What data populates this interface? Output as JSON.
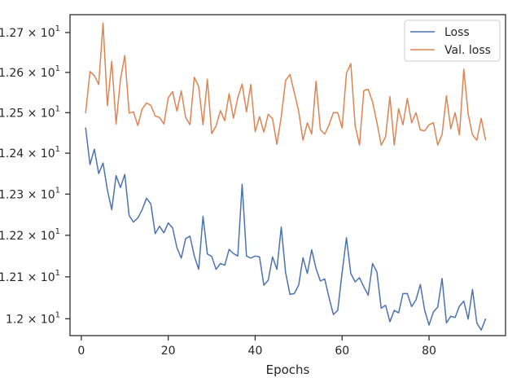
{
  "chart_data": {
    "type": "line",
    "xlabel": "Epochs",
    "ylabel": "",
    "title": "",
    "y_scale": "log",
    "xlim": [
      -2.6,
      97.6
    ],
    "ylim": [
      11.96,
      12.745
    ],
    "xticks": [
      0,
      20,
      40,
      60,
      80
    ],
    "yticks": [
      {
        "value": 12.0,
        "base": "1.2",
        "exp": "1"
      },
      {
        "value": 12.1,
        "base": "1.21",
        "exp": "1"
      },
      {
        "value": 12.2,
        "base": "1.22",
        "exp": "1"
      },
      {
        "value": 12.3,
        "base": "1.23",
        "exp": "1"
      },
      {
        "value": 12.4,
        "base": "1.24",
        "exp": "1"
      },
      {
        "value": 12.5,
        "base": "1.25",
        "exp": "1"
      },
      {
        "value": 12.6,
        "base": "1.26",
        "exp": "1"
      },
      {
        "value": 12.7,
        "base": "1.27",
        "exp": "1"
      }
    ],
    "times_symbol": "×",
    "grid": false,
    "legend_position": "upper-right",
    "series": [
      {
        "name": "Loss",
        "color": "#4c72b0",
        "x_start": 1,
        "values": [
          12.462,
          12.372,
          12.41,
          12.35,
          12.376,
          12.31,
          12.262,
          12.345,
          12.316,
          12.348,
          12.248,
          12.232,
          12.242,
          12.262,
          12.29,
          12.276,
          12.204,
          12.222,
          12.206,
          12.23,
          12.218,
          12.17,
          12.145,
          12.192,
          12.198,
          12.15,
          12.118,
          12.246,
          12.155,
          12.149,
          12.118,
          12.132,
          12.128,
          12.166,
          12.156,
          12.15,
          12.324,
          12.15,
          12.145,
          12.15,
          12.148,
          12.08,
          12.092,
          12.148,
          12.118,
          12.22,
          12.11,
          12.058,
          12.06,
          12.08,
          12.146,
          12.108,
          12.165,
          12.12,
          12.09,
          12.095,
          12.05,
          12.01,
          12.02,
          12.11,
          12.194,
          12.108,
          12.088,
          12.098,
          12.076,
          12.056,
          12.132,
          12.112,
          12.025,
          12.032,
          11.993,
          12.02,
          12.014,
          12.06,
          12.06,
          12.029,
          12.045,
          12.082,
          12.02,
          11.985,
          12.016,
          12.028,
          12.096,
          11.99,
          12.006,
          12.003,
          12.03,
          12.042,
          11.999,
          12.07,
          11.99,
          11.973,
          11.999
        ]
      },
      {
        "name": "Val. loss",
        "color": "#dd8452",
        "x_start": 1,
        "values": [
          12.5,
          12.602,
          12.592,
          12.57,
          12.724,
          12.517,
          12.628,
          12.472,
          12.582,
          12.642,
          12.499,
          12.502,
          12.468,
          12.509,
          12.524,
          12.518,
          12.492,
          12.488,
          12.472,
          12.537,
          12.552,
          12.504,
          12.554,
          12.488,
          12.47,
          12.588,
          12.565,
          12.47,
          12.583,
          12.448,
          12.467,
          12.505,
          12.48,
          12.547,
          12.486,
          12.537,
          12.571,
          12.502,
          12.57,
          12.453,
          12.49,
          12.452,
          12.496,
          12.485,
          12.422,
          12.49,
          12.58,
          12.595,
          12.55,
          12.504,
          12.432,
          12.475,
          12.447,
          12.578,
          12.458,
          12.447,
          12.47,
          12.5,
          12.5,
          12.462,
          12.598,
          12.622,
          12.468,
          12.42,
          12.555,
          12.558,
          12.527,
          12.476,
          12.42,
          12.44,
          12.54,
          12.42,
          12.51,
          12.47,
          12.535,
          12.475,
          12.5,
          12.457,
          12.455,
          12.47,
          12.475,
          12.42,
          12.446,
          12.542,
          12.46,
          12.5,
          12.445,
          12.608,
          12.497,
          12.445,
          12.432,
          12.486,
          12.433
        ]
      }
    ]
  }
}
